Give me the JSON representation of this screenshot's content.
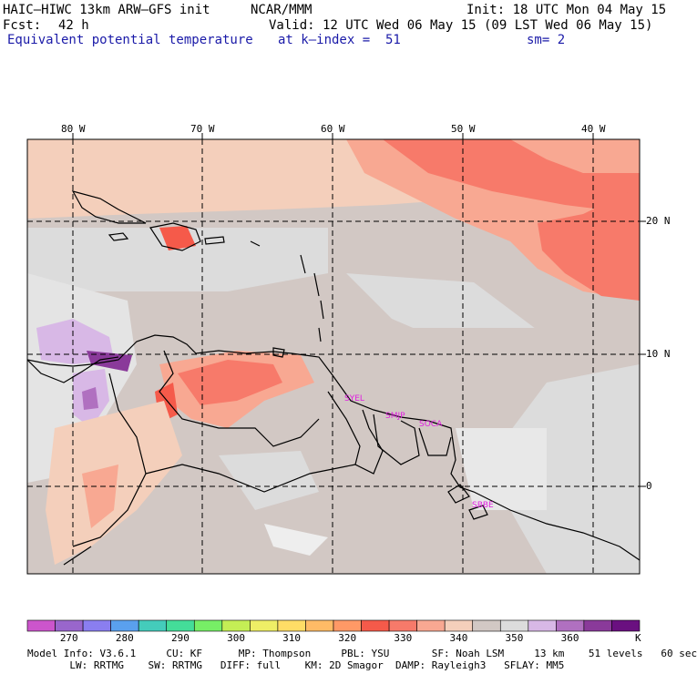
{
  "header": {
    "model": "HAIC–HIWC 13km ARW–GFS init",
    "org": "NCAR/MMM",
    "init": "Init: 18 UTC Mon 04 May 15",
    "fcst_label": "Fcst:",
    "fcst_value": "42 h",
    "valid": "Valid: 12 UTC Wed 06 May 15 (09 LST Wed 06 May 15)",
    "field": "Equivalent potential temperature",
    "level": "at k–index =  51",
    "smoothing": "sm= 2"
  },
  "axes": {
    "lon_labels": [
      "80 W",
      "70 W",
      "60 W",
      "50 W",
      "40 W"
    ],
    "lat_labels": [
      "20 N",
      "10 N",
      "0"
    ]
  },
  "stations": [
    "SYEL",
    "SMJP",
    "SOCA",
    "SBBE"
  ],
  "colorbar": {
    "labels": [
      "270",
      "280",
      "290",
      "300",
      "310",
      "320",
      "330",
      "340",
      "350",
      "360"
    ],
    "unit": "K",
    "colors": [
      "#cc55cc",
      "#9966cc",
      "#8a7ef0",
      "#5aa0ee",
      "#44ccbb",
      "#44dd99",
      "#77ee66",
      "#c4ee55",
      "#eeee66",
      "#ffdd66",
      "#ffbb66",
      "#ff9966",
      "#f55a4a",
      "#f77a6a",
      "#f8a892",
      "#f4cfbb",
      "#d2c8c4",
      "#dcdcdc",
      "#d8b8e6",
      "#b070c0",
      "#8a3a9a",
      "#6a1080"
    ]
  },
  "footer": {
    "line1": "Model Info: V3.6.1     CU: KF      MP: Thompson     PBL: YSU       SF: Noah LSM     13 km    51 levels   60 sec",
    "line2": "       LW: RRTMG    SW: RRTMG   DIFF: full    KM: 2D Smagor  DAMP: Rayleigh3   SFLAY: MM5"
  }
}
